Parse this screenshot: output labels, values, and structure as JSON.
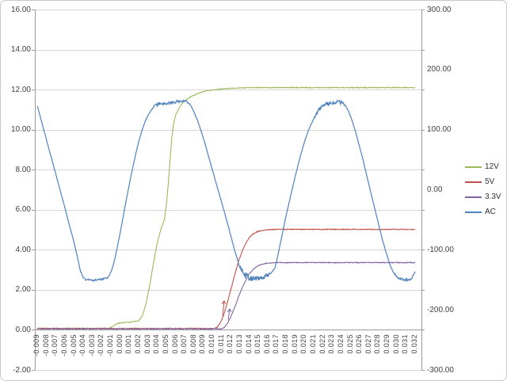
{
  "colors": {
    "background": "#ffffff",
    "frame_border": "#c9c9c9",
    "gridline": "#d5d5d5",
    "axis_line": "#9b9b9b",
    "text": "#3f3f3f"
  },
  "chart_data": {
    "type": "line",
    "title": "",
    "xlabel": "",
    "ylabel_left": "",
    "ylabel_right": "",
    "grid": "horizontal-only",
    "legend_position": "right",
    "x_axis": {
      "tick_labels": [
        "-0.009",
        "-0.008",
        "-0.007",
        "-0.006",
        "-0.005",
        "-0.004",
        "-0.003",
        "-0.002",
        "-0.001",
        "0.000",
        "0.001",
        "0.002",
        "0.003",
        "0.004",
        "0.005",
        "0.006",
        "0.007",
        "0.008",
        "0.009",
        "0.010",
        "0.011",
        "0.012",
        "0.013",
        "0.014",
        "0.015",
        "0.016",
        "0.017",
        "0.018",
        "0.019",
        "0.020",
        "0.021",
        "0.022",
        "0.023",
        "0.024",
        "0.025",
        "0.026",
        "0.027",
        "0.028",
        "0.029",
        "0.030",
        "0.031",
        "0.032"
      ],
      "min": -0.009,
      "max": 0.032,
      "step": 0.001,
      "rotation_degrees": 90
    },
    "y_axis_left": {
      "tick_labels": [
        "16.00",
        "14.00",
        "12.00",
        "10.00",
        "8.00",
        "6.00",
        "4.00",
        "2.00",
        "0.00",
        "-2.00"
      ],
      "min": -2,
      "max": 16,
      "step": 2
    },
    "y_axis_right": {
      "tick_labels": [
        "300.00",
        "200.00",
        "100.00",
        "0.00",
        "-100.00",
        "-200.00",
        "-300.00"
      ],
      "min": -300,
      "max": 300,
      "step": 100
    },
    "legend": [
      {
        "label": "12V",
        "color": "#9BBB59"
      },
      {
        "label": "5V",
        "color": "#C0504D"
      },
      {
        "label": "3.3V",
        "color": "#8064A2"
      },
      {
        "label": "AC",
        "color": "#4F81BD"
      }
    ],
    "series": [
      {
        "name": "12V",
        "axis": "left",
        "color": "#9BBB59",
        "base_noise": 0.02,
        "points": [
          [
            -0.009,
            0.07
          ],
          [
            -0.002,
            0.07
          ],
          [
            -0.0012,
            0.08
          ],
          [
            -0.0008,
            0.18
          ],
          [
            -0.0004,
            0.3
          ],
          [
            0,
            0.35
          ],
          [
            0.001,
            0.38
          ],
          [
            0.002,
            0.45
          ],
          [
            0.0024,
            0.7
          ],
          [
            0.0028,
            1.3
          ],
          [
            0.0032,
            2.2
          ],
          [
            0.0036,
            3.3
          ],
          [
            0.004,
            4.3
          ],
          [
            0.0044,
            5.0
          ],
          [
            0.0048,
            5.5
          ],
          [
            0.005,
            6.2
          ],
          [
            0.0052,
            7.2
          ],
          [
            0.0054,
            8.4
          ],
          [
            0.0056,
            9.6
          ],
          [
            0.0058,
            10.3
          ],
          [
            0.006,
            10.7
          ],
          [
            0.0064,
            11.1
          ],
          [
            0.0068,
            11.35
          ],
          [
            0.0072,
            11.5
          ],
          [
            0.0076,
            11.62
          ],
          [
            0.008,
            11.72
          ],
          [
            0.0085,
            11.82
          ],
          [
            0.009,
            11.89
          ],
          [
            0.0095,
            11.94
          ],
          [
            0.01,
            11.98
          ],
          [
            0.011,
            12.03
          ],
          [
            0.012,
            12.06
          ],
          [
            0.014,
            12.1
          ],
          [
            0.032,
            12.1
          ]
        ]
      },
      {
        "name": "5V",
        "axis": "left",
        "color": "#C0504D",
        "base_noise": 0.02,
        "spike": {
          "t": 0.0112,
          "v_from": 0.7,
          "v_to": 1.45
        },
        "points": [
          [
            -0.009,
            0.07
          ],
          [
            0.0102,
            0.07
          ],
          [
            0.0105,
            0.12
          ],
          [
            0.0108,
            0.3
          ],
          [
            0.0112,
            0.7
          ],
          [
            0.0116,
            1.3
          ],
          [
            0.012,
            2.0
          ],
          [
            0.0124,
            2.7
          ],
          [
            0.0128,
            3.35
          ],
          [
            0.0132,
            3.9
          ],
          [
            0.0136,
            4.3
          ],
          [
            0.014,
            4.6
          ],
          [
            0.0144,
            4.78
          ],
          [
            0.0148,
            4.89
          ],
          [
            0.0152,
            4.95
          ],
          [
            0.0156,
            4.98
          ],
          [
            0.016,
            5.0
          ],
          [
            0.017,
            5.02
          ],
          [
            0.032,
            5.02
          ]
        ]
      },
      {
        "name": "3.3V",
        "axis": "left",
        "color": "#8064A2",
        "base_noise": 0.02,
        "spike": {
          "t": 0.0118,
          "v_from": 0.5,
          "v_to": 1.05
        },
        "points": [
          [
            -0.009,
            0.05
          ],
          [
            0.011,
            0.05
          ],
          [
            0.0113,
            0.12
          ],
          [
            0.0116,
            0.3
          ],
          [
            0.012,
            0.65
          ],
          [
            0.0124,
            1.1
          ],
          [
            0.0128,
            1.6
          ],
          [
            0.0132,
            2.05
          ],
          [
            0.0136,
            2.45
          ],
          [
            0.014,
            2.8
          ],
          [
            0.0144,
            3.0
          ],
          [
            0.0148,
            3.15
          ],
          [
            0.0152,
            3.25
          ],
          [
            0.0156,
            3.3
          ],
          [
            0.016,
            3.33
          ],
          [
            0.017,
            3.36
          ],
          [
            0.032,
            3.36
          ]
        ]
      },
      {
        "name": "AC",
        "axis": "right",
        "color": "#4F81BD",
        "base_noise": 0.6,
        "noise_regions": [
          [
            -0.0043,
            -0.0013,
            1.6
          ],
          [
            0.0036,
            0.0074,
            2.5
          ],
          [
            0.0128,
            0.0162,
            4.8
          ],
          [
            0.021,
            0.0246,
            3.0
          ],
          [
            0.0298,
            0.0318,
            1.6
          ]
        ],
        "points": [
          [
            -0.009,
            140.0
          ],
          [
            -0.0085,
            111.7
          ],
          [
            -0.008,
            83.3
          ],
          [
            -0.0075,
            55.0
          ],
          [
            -0.007,
            26.7
          ],
          [
            -0.0065,
            -1.7
          ],
          [
            -0.006,
            -30.0
          ],
          [
            -0.0055,
            -60.0
          ],
          [
            -0.005,
            -88.3
          ],
          [
            -0.0046,
            -115.0
          ],
          [
            -0.0043,
            -136.7
          ],
          [
            -0.004,
            -146.7
          ],
          [
            -0.0037,
            -150.0
          ],
          [
            -0.003,
            -150.7
          ],
          [
            -0.0024,
            -150.0
          ],
          [
            -0.0018,
            -148.3
          ],
          [
            -0.0015,
            -148.3
          ],
          [
            -0.0012,
            -143.3
          ],
          [
            -0.0009,
            -133.3
          ],
          [
            -0.0006,
            -116.7
          ],
          [
            -0.0003,
            -95.0
          ],
          [
            0.0,
            -71.7
          ],
          [
            0.0003,
            -46.7
          ],
          [
            0.0006,
            -21.7
          ],
          [
            0.0009,
            1.7
          ],
          [
            0.0012,
            25.0
          ],
          [
            0.0015,
            46.7
          ],
          [
            0.0018,
            66.7
          ],
          [
            0.0021,
            85.0
          ],
          [
            0.0024,
            100.0
          ],
          [
            0.0027,
            113.3
          ],
          [
            0.003,
            123.3
          ],
          [
            0.0034,
            133.3
          ],
          [
            0.0038,
            140.0
          ],
          [
            0.0042,
            143.3
          ],
          [
            0.005,
            143.3
          ],
          [
            0.0056,
            145.0
          ],
          [
            0.0062,
            146.7
          ],
          [
            0.0068,
            148.3
          ],
          [
            0.0072,
            146.7
          ],
          [
            0.0076,
            141.7
          ],
          [
            0.008,
            130.0
          ],
          [
            0.0084,
            115.0
          ],
          [
            0.0088,
            96.7
          ],
          [
            0.0092,
            76.7
          ],
          [
            0.0096,
            55.0
          ],
          [
            0.01,
            33.3
          ],
          [
            0.0104,
            11.7
          ],
          [
            0.0108,
            -10.0
          ],
          [
            0.0112,
            -31.7
          ],
          [
            0.0116,
            -53.3
          ],
          [
            0.012,
            -76.7
          ],
          [
            0.0124,
            -100.0
          ],
          [
            0.0128,
            -120.0
          ],
          [
            0.0132,
            -135.0
          ],
          [
            0.0136,
            -143.3
          ],
          [
            0.014,
            -146.7
          ],
          [
            0.0145,
            -148.3
          ],
          [
            0.015,
            -148.3
          ],
          [
            0.0155,
            -146.7
          ],
          [
            0.016,
            -143.3
          ],
          [
            0.0164,
            -138.3
          ],
          [
            0.0168,
            -130.0
          ],
          [
            0.0172,
            -103.3
          ],
          [
            0.0176,
            -73.3
          ],
          [
            0.018,
            -43.3
          ],
          [
            0.0184,
            -16.7
          ],
          [
            0.0188,
            10.0
          ],
          [
            0.0192,
            35.0
          ],
          [
            0.0196,
            58.3
          ],
          [
            0.02,
            80.0
          ],
          [
            0.0204,
            98.3
          ],
          [
            0.0208,
            111.7
          ],
          [
            0.0212,
            125.0
          ],
          [
            0.0216,
            135.0
          ],
          [
            0.022,
            140.0
          ],
          [
            0.0224,
            143.3
          ],
          [
            0.023,
            145.0
          ],
          [
            0.0236,
            146.7
          ],
          [
            0.024,
            145.0
          ],
          [
            0.0244,
            141.7
          ],
          [
            0.0248,
            130.0
          ],
          [
            0.0252,
            113.3
          ],
          [
            0.0256,
            93.3
          ],
          [
            0.026,
            70.0
          ],
          [
            0.0264,
            46.7
          ],
          [
            0.0268,
            20.0
          ],
          [
            0.0272,
            -5.0
          ],
          [
            0.0276,
            -30.0
          ],
          [
            0.028,
            -55.0
          ],
          [
            0.0284,
            -80.0
          ],
          [
            0.0288,
            -101.7
          ],
          [
            0.0292,
            -121.7
          ],
          [
            0.0296,
            -136.7
          ],
          [
            0.03,
            -145.0
          ],
          [
            0.0304,
            -148.3
          ],
          [
            0.0308,
            -150.0
          ],
          [
            0.0312,
            -150.0
          ],
          [
            0.0316,
            -148.3
          ],
          [
            0.032,
            -136.7
          ]
        ]
      }
    ]
  }
}
